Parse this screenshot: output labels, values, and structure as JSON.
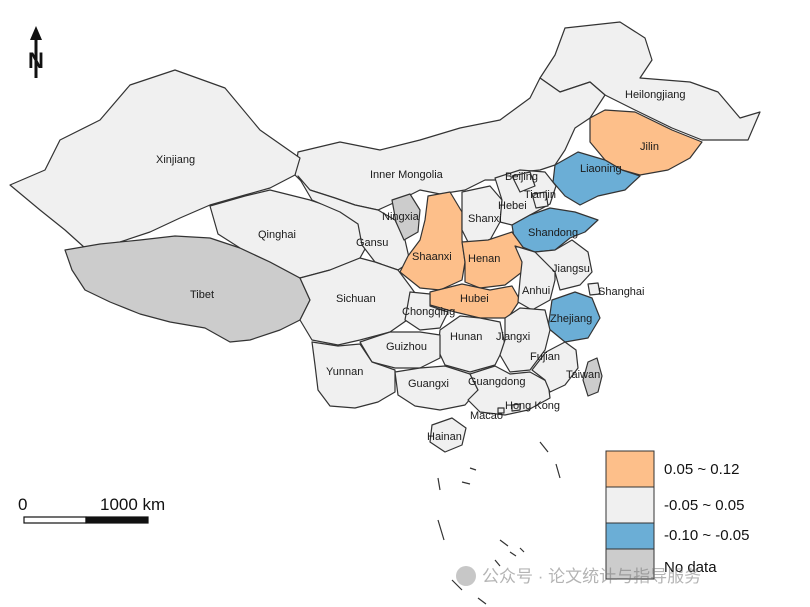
{
  "colors": {
    "positive": "#FDBF8A",
    "neutral": "#F0F0F0",
    "negative": "#6BAED6",
    "nodata": "#CCCCCC"
  },
  "north_arrow": {
    "label": "N"
  },
  "scale_bar": {
    "start_label": "0",
    "end_label": "1000 km"
  },
  "legend": {
    "items": [
      {
        "label": "0.05 ~ 0.12",
        "class": "positive"
      },
      {
        "label": "-0.05 ~ 0.05",
        "class": "neutral"
      },
      {
        "label": "-0.10 ~ -0.05",
        "class": "negative"
      },
      {
        "label": "No data",
        "class": "nodata"
      }
    ]
  },
  "provinces": [
    {
      "name": "Heilongjiang",
      "class": "neutral"
    },
    {
      "name": "Jilin",
      "class": "positive"
    },
    {
      "name": "Liaoning",
      "class": "negative"
    },
    {
      "name": "Inner Mongolia",
      "class": "neutral"
    },
    {
      "name": "Xinjiang",
      "class": "neutral"
    },
    {
      "name": "Tibet",
      "class": "nodata"
    },
    {
      "name": "Qinghai",
      "class": "neutral"
    },
    {
      "name": "Gansu",
      "class": "neutral"
    },
    {
      "name": "Ningxia",
      "class": "nodata"
    },
    {
      "name": "Shaanxi",
      "class": "positive"
    },
    {
      "name": "Shanxi",
      "class": "neutral"
    },
    {
      "name": "Hebei",
      "class": "neutral"
    },
    {
      "name": "Beijing",
      "class": "neutral"
    },
    {
      "name": "Tianjin",
      "class": "neutral"
    },
    {
      "name": "Shandong",
      "class": "negative"
    },
    {
      "name": "Henan",
      "class": "positive"
    },
    {
      "name": "Hubei",
      "class": "positive"
    },
    {
      "name": "Sichuan",
      "class": "neutral"
    },
    {
      "name": "Chongqing",
      "class": "neutral"
    },
    {
      "name": "Anhui",
      "class": "neutral"
    },
    {
      "name": "Jiangsu",
      "class": "neutral"
    },
    {
      "name": "Shanghai",
      "class": "neutral"
    },
    {
      "name": "Zhejiang",
      "class": "negative"
    },
    {
      "name": "Hunan",
      "class": "neutral"
    },
    {
      "name": "Jiangxi",
      "class": "neutral"
    },
    {
      "name": "Guizhou",
      "class": "neutral"
    },
    {
      "name": "Yunnan",
      "class": "neutral"
    },
    {
      "name": "Guangxi",
      "class": "neutral"
    },
    {
      "name": "Guangdong",
      "class": "neutral"
    },
    {
      "name": "Fujian",
      "class": "neutral"
    },
    {
      "name": "Taiwan",
      "class": "nodata"
    },
    {
      "name": "Hong Kong",
      "class": "neutral"
    },
    {
      "name": "Macao",
      "class": "neutral"
    },
    {
      "name": "Hainan",
      "class": "neutral"
    }
  ],
  "watermark": {
    "text": "公众号 · 论文统计与指导服务"
  }
}
